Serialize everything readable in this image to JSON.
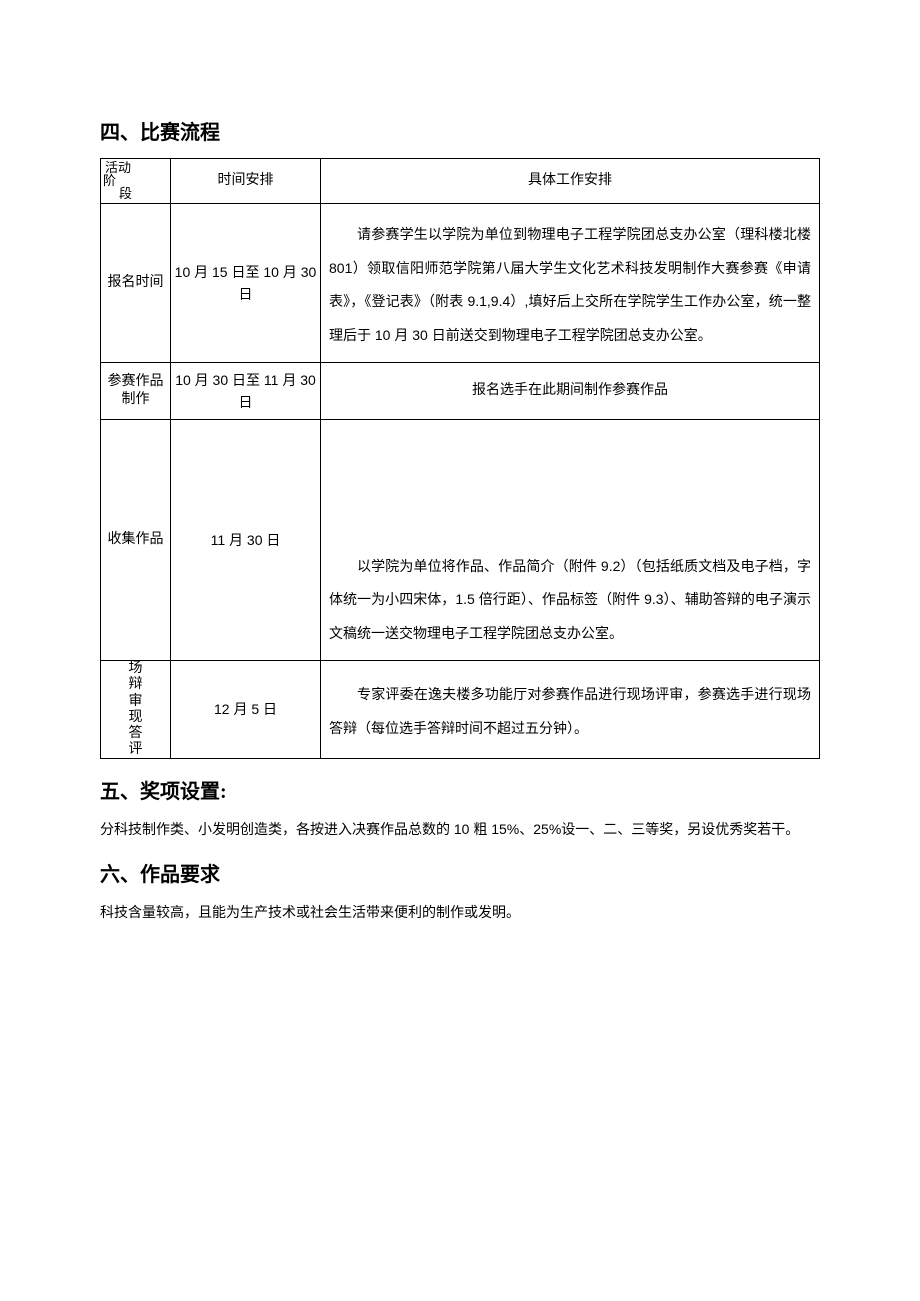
{
  "sections": {
    "s4": {
      "heading": "四、比赛流程"
    },
    "s5": {
      "heading": "五、奖项设置:"
    },
    "s6": {
      "heading": "六、作品要求"
    }
  },
  "table": {
    "header": {
      "stage_top": "活动",
      "stage_mid": "阶",
      "stage_bot": "段",
      "time": "时间安排",
      "detail": "具体工作安排"
    },
    "rows": [
      {
        "stage": "报名时间",
        "time": "10 月 15 日至 10 月 30 日",
        "detail": "请参赛学生以学院为单位到物理电子工程学院团总支办公室（理科楼北楼 801）领取信阳师范学院第八届大学生文化艺术科技发明制作大赛参赛《申请表》，《登记表》（附表 9.1,9.4）,填好后上交所在学院学生工作办公室，统一整理后于 10 月 30 日前送交到物理电子工程学院团总支办公室。"
      },
      {
        "stage": "参赛作品制作",
        "time": "10 月 30 日至 11 月 30 日",
        "detail": "报名选手在此期间制作参赛作品"
      },
      {
        "stage": "收集作品",
        "time": "11 月 30 日",
        "detail": "以学院为单位将作品、作品简介（附件 9.2）（包括纸质文档及电子档，字体统一为小四宋体，1.5 倍行距）、作品标签（附件 9.3）、辅助答辩的电子演示文稿统一送交物理电子工程学院团总支办公室。"
      },
      {
        "stage_chars": [
          "场",
          "辩",
          "审",
          "现",
          "答",
          "评"
        ],
        "time": "12 月 5 日",
        "detail": "专家评委在逸夫楼多功能厅对参赛作品进行现场评审，参赛选手进行现场答辩（每位选手答辩时间不超过五分钟）。"
      }
    ]
  },
  "s5_body": "分科技制作类、小发明创造类，各按进入决赛作品总数的 10 粗 15%、25%设一、二、三等奖，另设优秀奖若干。",
  "s6_body": "科技含量较高，且能为生产技术或社会生活带来便利的制作或发明。"
}
